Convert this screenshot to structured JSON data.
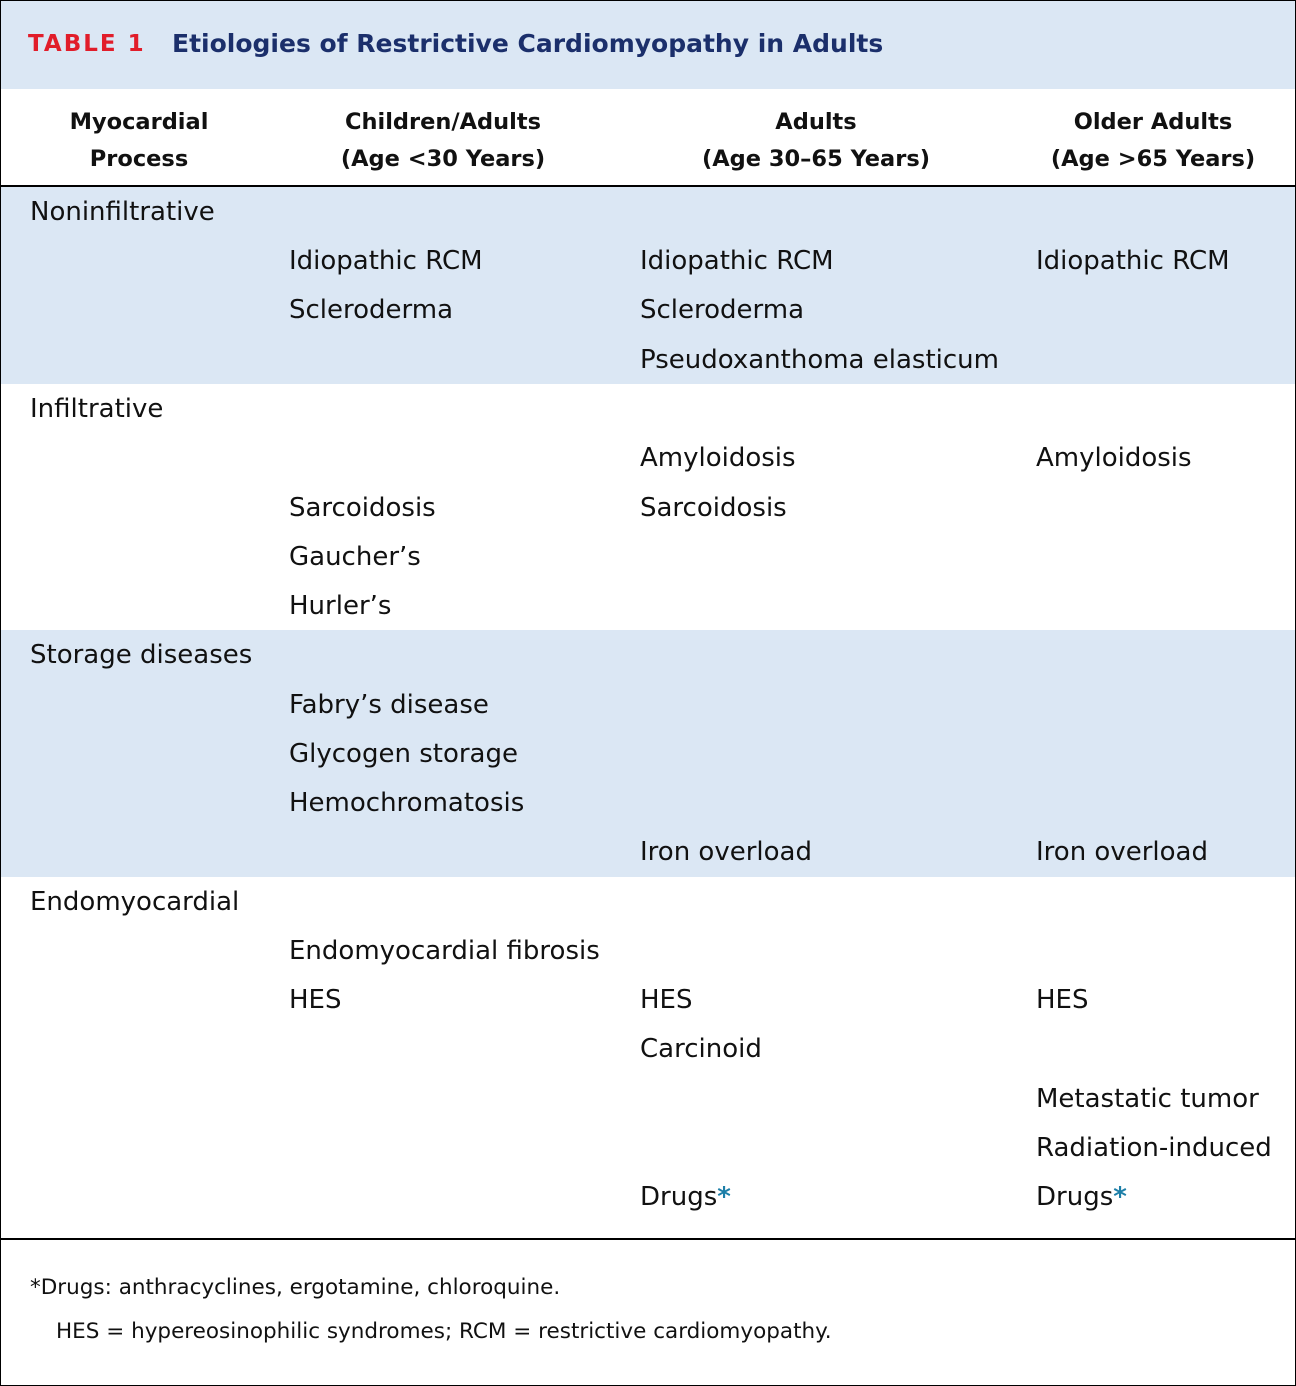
{
  "table_label": "TABLE 1",
  "table_title": "Etiologies of Restrictive Cardiomyopathy in Adults",
  "columns": [
    {
      "line1": "Myocardial",
      "line2": "Process"
    },
    {
      "line1": "Children/Adults",
      "line2": "(Age <30 Years)"
    },
    {
      "line1": "Adults",
      "line2": "(Age 30–65 Years)"
    },
    {
      "line1": "Older Adults",
      "line2": "(Age >65 Years)"
    }
  ],
  "categories": [
    "Noninfiltrative",
    "Infiltrative",
    "Storage diseases",
    "Endomyocardial"
  ],
  "rows": {
    "noninfiltrative": {
      "children": [
        "Idiopathic RCM",
        "Scleroderma"
      ],
      "adults": [
        "Idiopathic RCM",
        "Scleroderma",
        "Pseudoxanthoma elasticum"
      ],
      "older": [
        "Idiopathic RCM"
      ]
    },
    "infiltrative": {
      "adults": [
        "Amyloidosis",
        "Sarcoidosis"
      ],
      "older": [
        "Amyloidosis"
      ],
      "children": [
        "Sarcoidosis",
        "Gaucher’s",
        "Hurler’s"
      ]
    },
    "storage": {
      "children": [
        "Fabry’s disease",
        "Glycogen storage",
        "Hemochromatosis"
      ],
      "adults": [
        "Iron overload"
      ],
      "older": [
        "Iron overload"
      ]
    },
    "endomyocardial": {
      "children": [
        "Endomyocardial fibrosis",
        "HES"
      ],
      "adults": [
        "HES",
        "Carcinoid",
        "Drugs"
      ],
      "older": [
        "HES",
        "Metastatic tumor",
        "Radiation-induced",
        "Drugs"
      ]
    }
  },
  "footnote_marker": "*",
  "footnotes": [
    "*Drugs: anthracyclines, ergotamine, chloroquine.",
    "HES = hypereosinophilic syndromes; RCM = restrictive cardiomyopathy."
  ]
}
